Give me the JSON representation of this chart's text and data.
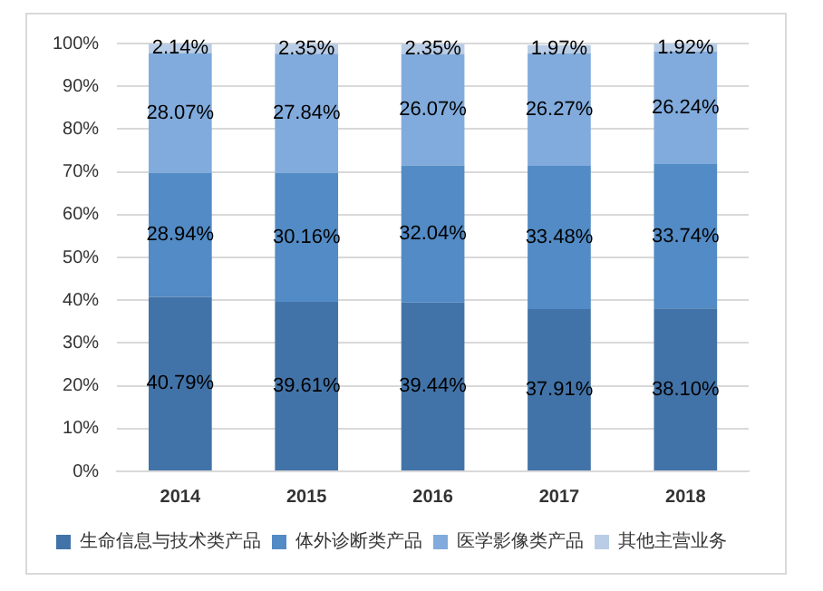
{
  "chart_data": {
    "type": "bar",
    "stacked": true,
    "categories": [
      "2014",
      "2015",
      "2016",
      "2017",
      "2018"
    ],
    "series": [
      {
        "name": "生命信息与技术类产品",
        "color": "#4273a8",
        "values": [
          40.79,
          39.61,
          39.44,
          37.91,
          38.1
        ],
        "value_labels": [
          "40.79%",
          "39.61%",
          "39.44%",
          "37.91%",
          "38.10%"
        ]
      },
      {
        "name": "体外诊断类产品",
        "color": "#528bc5",
        "values": [
          28.94,
          30.16,
          32.04,
          33.48,
          33.74
        ],
        "value_labels": [
          "28.94%",
          "30.16%",
          "32.04%",
          "33.48%",
          "33.74%"
        ]
      },
      {
        "name": "医学影像类产品",
        "color": "#81abdc",
        "values": [
          28.07,
          27.84,
          26.07,
          26.27,
          26.24
        ],
        "value_labels": [
          "28.07%",
          "27.84%",
          "26.07%",
          "26.27%",
          "26.24%"
        ]
      },
      {
        "name": "其他主营业务",
        "color": "#b9cde6",
        "values": [
          2.14,
          2.35,
          2.35,
          1.97,
          1.92
        ],
        "value_labels": [
          "2.14%",
          "2.35%",
          "2.35%",
          "1.97%",
          "1.92%"
        ]
      }
    ],
    "ylim": [
      0,
      100
    ],
    "yticks": [
      {
        "value": 0,
        "label": "0%"
      },
      {
        "value": 10,
        "label": "10%"
      },
      {
        "value": 20,
        "label": "20%"
      },
      {
        "value": 30,
        "label": "30%"
      },
      {
        "value": 40,
        "label": "40%"
      },
      {
        "value": 50,
        "label": "50%"
      },
      {
        "value": 60,
        "label": "60%"
      },
      {
        "value": 70,
        "label": "70%"
      },
      {
        "value": 80,
        "label": "80%"
      },
      {
        "value": 90,
        "label": "90%"
      },
      {
        "value": 100,
        "label": "100%"
      }
    ],
    "grid": "y",
    "legend": "bottom"
  }
}
